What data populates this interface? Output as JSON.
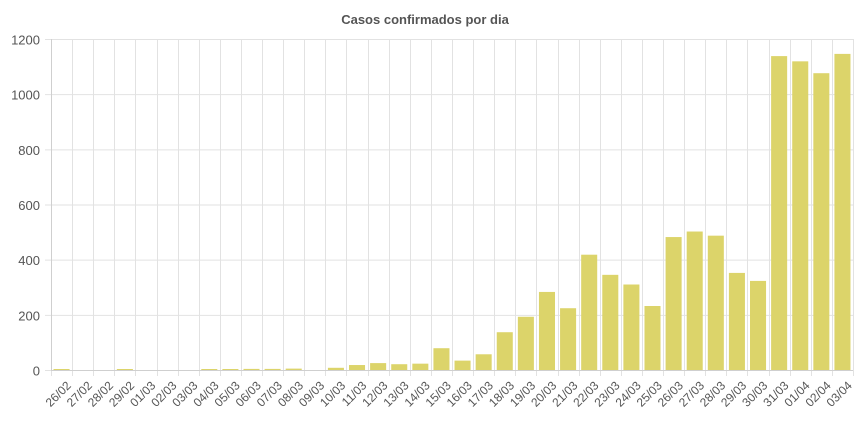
{
  "chart_data": {
    "type": "bar",
    "title": "Casos confirmados por dia",
    "xlabel": "",
    "ylabel": "",
    "ylim": [
      0,
      1200
    ],
    "yticks": [
      0,
      200,
      400,
      600,
      800,
      1000,
      1200
    ],
    "grid": true,
    "legend": "none",
    "bar_color": "#dcd46a",
    "categories": [
      "26/02",
      "27/02",
      "28/02",
      "29/02",
      "01/03",
      "02/03",
      "03/03",
      "04/03",
      "05/03",
      "06/03",
      "07/03",
      "08/03",
      "09/03",
      "10/03",
      "11/03",
      "12/03",
      "13/03",
      "14/03",
      "15/03",
      "16/03",
      "17/03",
      "18/03",
      "19/03",
      "20/03",
      "21/03",
      "22/03",
      "23/03",
      "24/03",
      "25/03",
      "26/03",
      "27/03",
      "28/03",
      "29/03",
      "30/03",
      "31/03",
      "01/04",
      "02/04",
      "03/04"
    ],
    "values": [
      1,
      0,
      0,
      1,
      0,
      0,
      0,
      1,
      2,
      4,
      4,
      5,
      0,
      8,
      18,
      25,
      21,
      23,
      79,
      34,
      57,
      137,
      193,
      283,
      224,
      418,
      345,
      310,
      232,
      482,
      502,
      487,
      352,
      323,
      1138,
      1119,
      1076,
      1146
    ]
  }
}
